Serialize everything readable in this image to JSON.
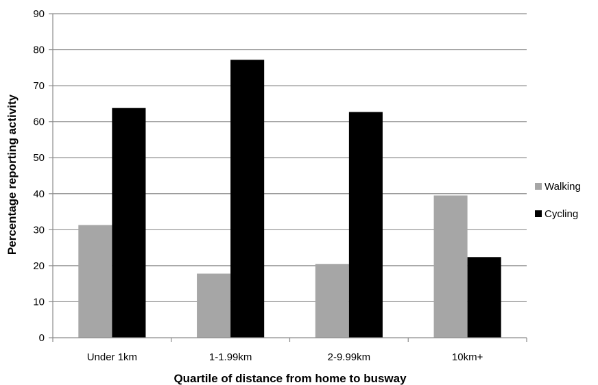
{
  "chart_data": {
    "type": "bar",
    "title": "",
    "xlabel": "Quartile of distance from home to busway",
    "ylabel": "Percentage reporting activity",
    "categories": [
      "Under 1km",
      "1-1.99km",
      "2-9.99km",
      "10km+"
    ],
    "series": [
      {
        "name": "Walking",
        "values": [
          31.3,
          17.8,
          20.5,
          39.5
        ],
        "color": "#a6a6a6"
      },
      {
        "name": "Cycling",
        "values": [
          63.8,
          77.2,
          62.7,
          22.4
        ],
        "color": "#000000"
      }
    ],
    "ylim": [
      0,
      90
    ],
    "yticks": [
      0,
      10,
      20,
      30,
      40,
      50,
      60,
      70,
      80,
      90
    ],
    "grid": true,
    "legend_position": "right"
  }
}
